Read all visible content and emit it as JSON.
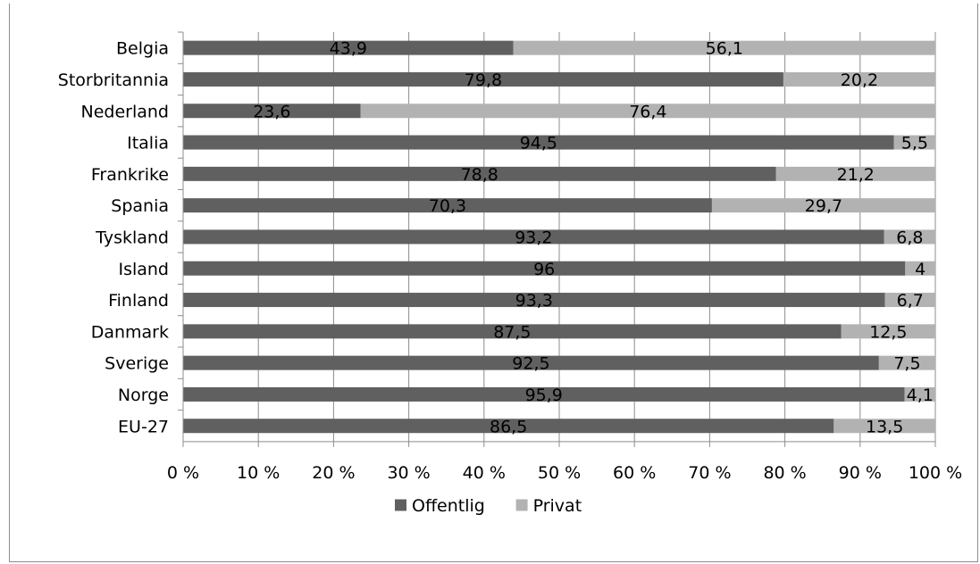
{
  "chart_data": {
    "type": "bar",
    "orientation": "horizontal",
    "stacked": "percent",
    "categories": [
      "Belgia",
      "Storbritannia",
      "Nederland",
      "Italia",
      "Frankrike",
      "Spania",
      "Tyskland",
      "Island",
      "Finland",
      "Danmark",
      "Sverige",
      "Norge",
      "EU-27"
    ],
    "series": [
      {
        "name": "Offentlig",
        "color": "#606060",
        "values": [
          43.9,
          79.8,
          23.6,
          94.5,
          78.8,
          70.3,
          93.2,
          96,
          93.3,
          87.5,
          92.5,
          95.9,
          86.5
        ],
        "labels": [
          "43,9",
          "79,8",
          "23,6",
          "94,5",
          "78,8",
          "70,3",
          "93,2",
          "96",
          "93,3",
          "87,5",
          "92,5",
          "95,9",
          "86,5"
        ]
      },
      {
        "name": "Privat",
        "color": "#b2b2b2",
        "values": [
          56.1,
          20.2,
          76.4,
          5.5,
          21.2,
          29.7,
          6.8,
          4,
          6.7,
          12.5,
          7.5,
          4.1,
          13.5
        ],
        "labels": [
          "56,1",
          "20,2",
          "76,4",
          "5,5",
          "21,2",
          "29,7",
          "6,8",
          "4",
          "6,7",
          "12,5",
          "7,5",
          "4,1",
          "13,5"
        ]
      }
    ],
    "x_ticks": [
      "0 %",
      "10 %",
      "20 %",
      "30 %",
      "40 %",
      "50 %",
      "60 %",
      "70 %",
      "80 %",
      "90 %",
      "100 %"
    ],
    "xlim": [
      0,
      100
    ],
    "grid": "vertical",
    "legend": "bottom"
  }
}
